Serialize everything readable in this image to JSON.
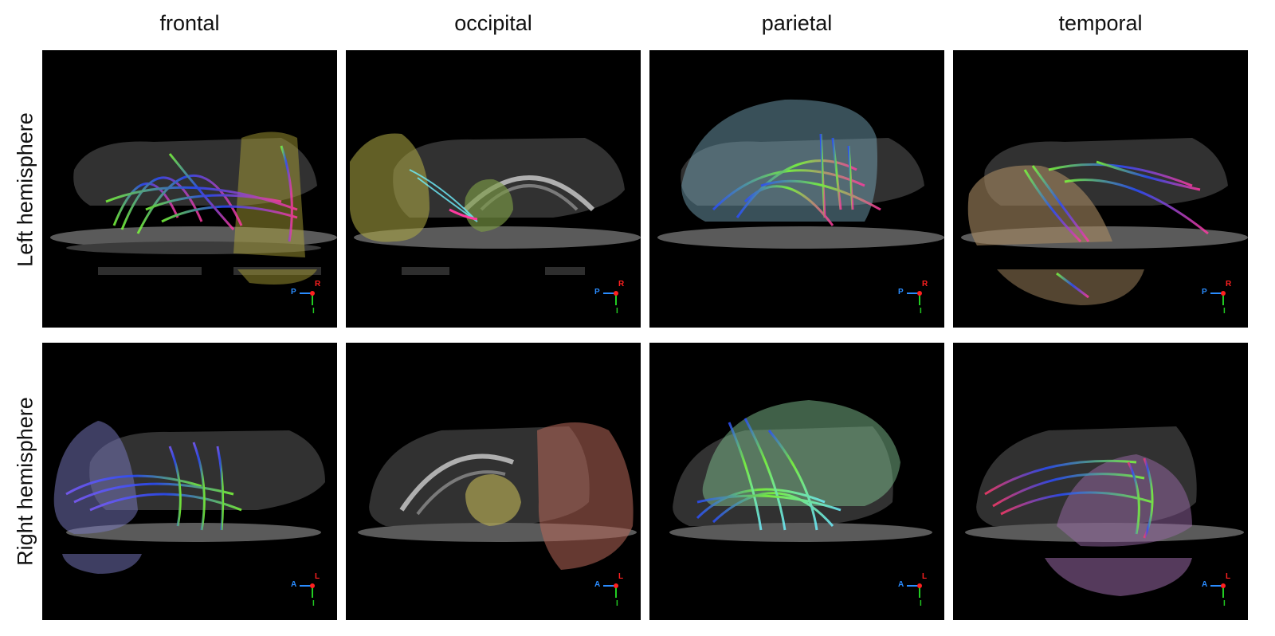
{
  "columns": [
    "frontal",
    "occipital",
    "parietal",
    "temporal"
  ],
  "rows": [
    "Left hemisphere",
    "Right hemisphere"
  ],
  "orientation": {
    "left": {
      "horizontal": "P",
      "vertical": "R",
      "inferior": "I"
    },
    "right": {
      "horizontal": "A",
      "vertical": "L",
      "inferior": "I"
    }
  },
  "colors": {
    "panel_bg": "#000000",
    "frontal_left_lobe": "#b7ad3a",
    "occipital_left_lobe": "#b2ad45",
    "parietal_left_lobe": "#7fb2c6",
    "temporal_left_lobe": "#a88a62",
    "frontal_right_lobe": "#7c7cc4",
    "occipital_right_lobe": "#b8675a",
    "parietal_right_lobe": "#7fbf8f",
    "temporal_right_lobe": "#9a6aa8"
  }
}
